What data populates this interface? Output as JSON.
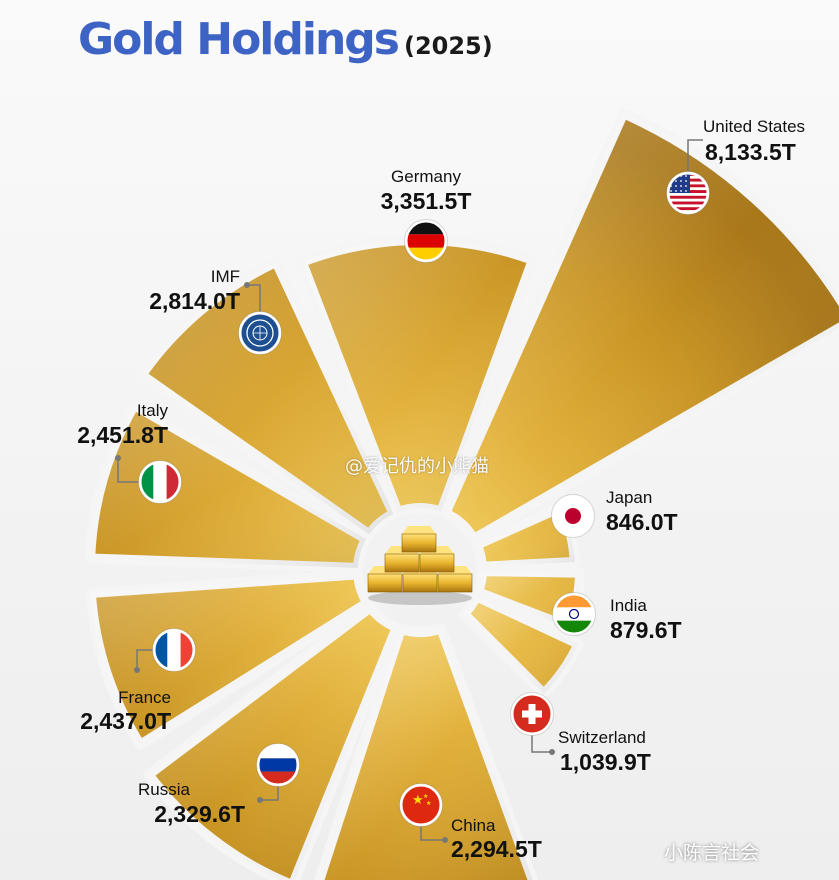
{
  "header": {
    "title": "Gold Holdings",
    "subtitle": "(2025)"
  },
  "chart_data": {
    "type": "pie",
    "unit": "T",
    "slices": [
      {
        "label": "United States",
        "value": 8133.5,
        "display": "8,133.5T",
        "flag": "united-states-flag"
      },
      {
        "label": "Japan",
        "value": 846.0,
        "display": "846.0T",
        "flag": "japan-flag"
      },
      {
        "label": "India",
        "value": 879.6,
        "display": "879.6T",
        "flag": "india-flag"
      },
      {
        "label": "Switzerland",
        "value": 1039.9,
        "display": "1,039.9T",
        "flag": "switzerland-flag"
      },
      {
        "label": "China",
        "value": 2294.5,
        "display": "2,294.5T",
        "flag": "china-flag"
      },
      {
        "label": "Russia",
        "value": 2329.6,
        "display": "2,329.6T",
        "flag": "russia-flag"
      },
      {
        "label": "France",
        "value": 2437.0,
        "display": "2,437.0T",
        "flag": "france-flag"
      },
      {
        "label": "Italy",
        "value": 2451.8,
        "display": "2,451.8T",
        "flag": "italy-flag"
      },
      {
        "label": "IMF",
        "value": 2814.0,
        "display": "2,814.0T",
        "flag": "imf-seal"
      },
      {
        "label": "Germany",
        "value": 3351.5,
        "display": "3,351.5T",
        "flag": "germany-flag"
      }
    ]
  },
  "watermarks": {
    "center": "@爱记仇的小熊猫",
    "corner": "小陈言社会"
  }
}
